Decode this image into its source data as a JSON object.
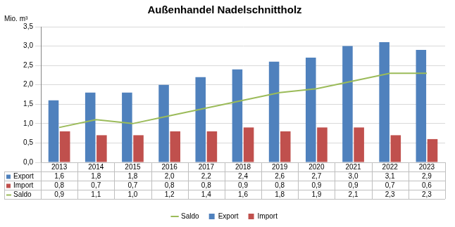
{
  "chart_data": {
    "type": "bar",
    "title": "Außenhandel Nadelschnittholz",
    "y_label": "Mio. m³",
    "categories": [
      "2013",
      "2014",
      "2015",
      "2016",
      "2017",
      "2018",
      "2019",
      "2020",
      "2021",
      "2022",
      "2023"
    ],
    "series": [
      {
        "name": "Export",
        "type": "bar",
        "color": "#4f81bd",
        "values": [
          1.6,
          1.8,
          1.8,
          2.0,
          2.2,
          2.4,
          2.6,
          2.7,
          3.0,
          3.1,
          2.9
        ],
        "value_labels": [
          "1,6",
          "1,8",
          "1,8",
          "2,0",
          "2,2",
          "2,4",
          "2,6",
          "2,7",
          "3,0",
          "3,1",
          "2,9"
        ]
      },
      {
        "name": "Import",
        "type": "bar",
        "color": "#c0504d",
        "values": [
          0.8,
          0.7,
          0.7,
          0.8,
          0.8,
          0.9,
          0.8,
          0.9,
          0.9,
          0.7,
          0.6
        ],
        "value_labels": [
          "0,8",
          "0,7",
          "0,7",
          "0,8",
          "0,8",
          "0,9",
          "0,8",
          "0,9",
          "0,9",
          "0,7",
          "0,6"
        ]
      },
      {
        "name": "Saldo",
        "type": "line",
        "color": "#9bbb59",
        "values": [
          0.9,
          1.1,
          1.0,
          1.2,
          1.4,
          1.6,
          1.8,
          1.9,
          2.1,
          2.3,
          2.3
        ],
        "value_labels": [
          "0,9",
          "1,1",
          "1,0",
          "1,2",
          "1,4",
          "1,6",
          "1,8",
          "1,9",
          "2,1",
          "2,3",
          "2,3"
        ]
      }
    ],
    "ylim": [
      0,
      3.5
    ],
    "yticks": [
      {
        "value": 0,
        "label": "0,0"
      },
      {
        "value": 0.5,
        "label": "0,5"
      },
      {
        "value": 1,
        "label": "1,0"
      },
      {
        "value": 1.5,
        "label": "1,5"
      },
      {
        "value": 2,
        "label": "2,0"
      },
      {
        "value": 2.5,
        "label": "2,5"
      },
      {
        "value": 3,
        "label": "3,0"
      },
      {
        "value": 3.5,
        "label": "3,5"
      }
    ],
    "grid": true,
    "legend": "bottom",
    "data_labels": true
  }
}
